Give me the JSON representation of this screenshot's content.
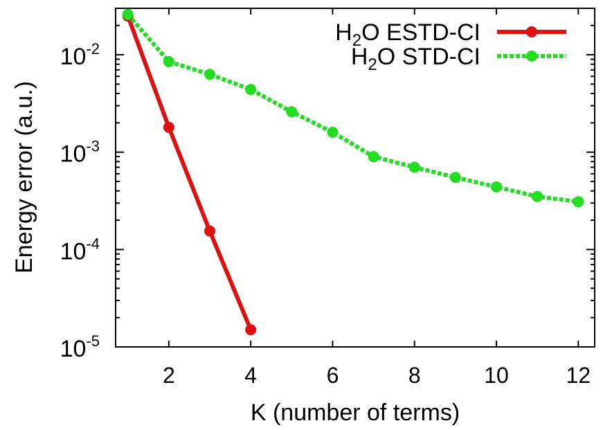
{
  "chart_data": {
    "type": "line",
    "xlabel": "K (number of terms)",
    "ylabel": "Energy error (a.u.)",
    "xlim": [
      0.7,
      12.4
    ],
    "ylim": [
      1e-05,
      0.03
    ],
    "y_scale": "log",
    "x_ticks": [
      2,
      4,
      6,
      8,
      10,
      12
    ],
    "y_ticks": [
      {
        "value": 0.01,
        "base": "10",
        "exp": "-2"
      },
      {
        "value": 0.001,
        "base": "10",
        "exp": "-3"
      },
      {
        "value": 0.0001,
        "base": "10",
        "exp": "-4"
      },
      {
        "value": 1e-05,
        "base": "10",
        "exp": "-5"
      }
    ],
    "grid": false,
    "legend_position": "top-right",
    "series": [
      {
        "name": "H2O ESTD-CI",
        "legend_parts": [
          "H",
          "2",
          "O ESTD-CI"
        ],
        "color": "#dd1111",
        "line_style": "solid",
        "x": [
          1,
          2,
          3,
          4
        ],
        "y": [
          0.025,
          0.0018,
          0.000155,
          1.5e-05
        ]
      },
      {
        "name": "H2O STD-CI",
        "legend_parts": [
          "H",
          "2",
          "O STD-CI"
        ],
        "color": "#22dd22",
        "line_style": "dotted",
        "x": [
          1,
          2,
          3,
          4,
          5,
          6,
          7,
          8,
          9,
          10,
          11,
          12
        ],
        "y": [
          0.026,
          0.0085,
          0.0063,
          0.0044,
          0.0026,
          0.0016,
          0.0009,
          0.0007,
          0.00055,
          0.00044,
          0.00035,
          0.00031
        ]
      }
    ]
  }
}
